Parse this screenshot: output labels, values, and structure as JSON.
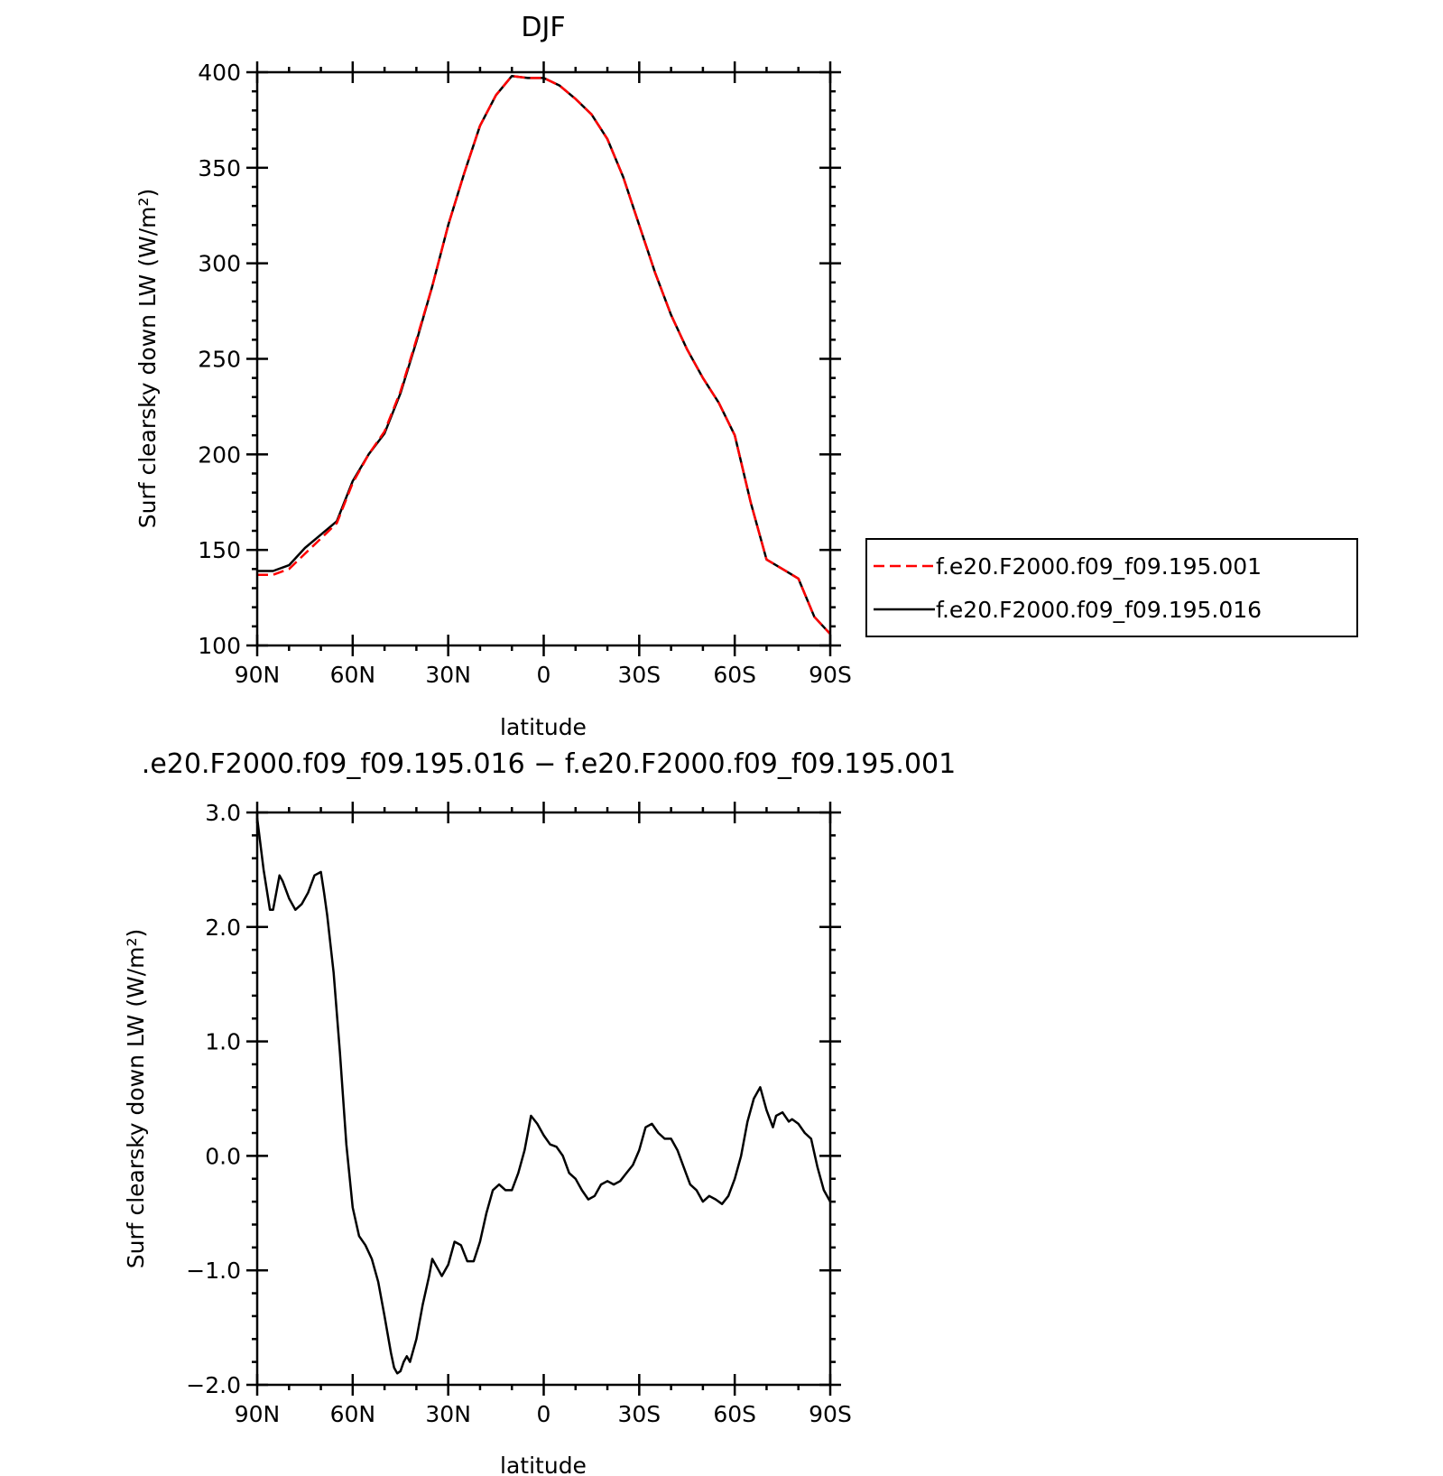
{
  "chart_data": [
    {
      "type": "line",
      "title": "DJF",
      "xlabel": "latitude",
      "ylabel": "Surf clearsky down LW (W/m²)",
      "xlim": [
        90,
        -90
      ],
      "ylim": [
        100,
        400
      ],
      "x_tick_values": [
        90,
        60,
        30,
        0,
        -30,
        -60,
        -90
      ],
      "x_tick_labels": [
        "90N",
        "60N",
        "30N",
        "0",
        "30S",
        "60S",
        "90S"
      ],
      "y_tick_values": [
        100,
        150,
        200,
        250,
        300,
        350,
        400
      ],
      "y_tick_labels": [
        "100",
        "150",
        "200",
        "250",
        "300",
        "350",
        "400"
      ],
      "legend_position": "right",
      "series": [
        {
          "name": "f.e20.F2000.f09_f09.195.001",
          "color": "#ff0000",
          "dash": "dashed",
          "x": [
            90,
            85,
            80,
            75,
            70,
            65,
            60,
            55,
            50,
            45,
            40,
            35,
            30,
            25,
            20,
            15,
            10,
            5,
            0,
            -5,
            -10,
            -15,
            -20,
            -25,
            -30,
            -35,
            -40,
            -45,
            -50,
            -55,
            -60,
            -65,
            -70,
            -75,
            -80,
            -85,
            -90
          ],
          "y": [
            137,
            137,
            140,
            148,
            156,
            164,
            185,
            200,
            212,
            233,
            260,
            288,
            320,
            347,
            372,
            388,
            398,
            397,
            397,
            393,
            386,
            378,
            365,
            345,
            320,
            295,
            273,
            255,
            240,
            227,
            210,
            175,
            145,
            140,
            135,
            115,
            106
          ]
        },
        {
          "name": "f.e20.F2000.f09_f09.195.016",
          "color": "#000000",
          "dash": "solid",
          "x": [
            90,
            85,
            80,
            75,
            70,
            65,
            60,
            55,
            50,
            45,
            40,
            35,
            30,
            25,
            20,
            15,
            10,
            5,
            0,
            -5,
            -10,
            -15,
            -20,
            -25,
            -30,
            -35,
            -40,
            -45,
            -50,
            -55,
            -60,
            -65,
            -70,
            -75,
            -80,
            -85,
            -90
          ],
          "y": [
            139,
            139,
            142,
            151,
            158,
            165,
            186,
            200,
            211,
            232,
            259,
            288,
            320,
            347,
            372,
            388,
            398,
            397,
            397,
            393,
            386,
            378,
            365,
            345,
            320,
            295,
            273,
            255,
            240,
            227,
            210,
            175,
            145,
            140,
            135,
            115,
            106
          ]
        }
      ]
    },
    {
      "type": "line",
      "title": ".e20.F2000.f09_f09.195.016 − f.e20.F2000.f09_f09.195.001",
      "xlabel": "latitude",
      "ylabel": "Surf clearsky down LW (W/m²)",
      "xlim": [
        90,
        -90
      ],
      "ylim": [
        -2.0,
        3.0
      ],
      "x_tick_values": [
        90,
        60,
        30,
        0,
        -30,
        -60,
        -90
      ],
      "x_tick_labels": [
        "90N",
        "60N",
        "30N",
        "0",
        "30S",
        "60S",
        "90S"
      ],
      "y_tick_values": [
        -2.0,
        -1.0,
        0.0,
        1.0,
        2.0,
        3.0
      ],
      "y_tick_labels": [
        "−2.0",
        "−1.0",
        "0.0",
        "1.0",
        "2.0",
        "3.0"
      ],
      "series": [
        {
          "color": "#000000",
          "dash": "solid",
          "x": [
            90,
            88,
            86,
            85,
            83,
            82,
            80,
            78,
            76,
            74,
            72,
            70,
            69,
            68,
            66,
            64,
            62,
            60,
            58,
            56,
            54,
            52,
            50,
            48,
            47,
            46,
            45,
            44,
            43,
            42,
            40,
            38,
            36,
            35,
            33,
            32,
            30,
            28,
            26,
            24,
            22,
            20,
            18,
            16,
            14,
            12,
            10,
            8,
            6,
            5,
            4,
            2,
            0,
            -2,
            -4,
            -6,
            -8,
            -10,
            -12,
            -14,
            -16,
            -18,
            -20,
            -22,
            -24,
            -26,
            -28,
            -30,
            -32,
            -34,
            -36,
            -38,
            -40,
            -42,
            -44,
            -46,
            -48,
            -50,
            -52,
            -54,
            -56,
            -58,
            -60,
            -62,
            -64,
            -66,
            -68,
            -70,
            -72,
            -73,
            -75,
            -77,
            -78,
            -80,
            -82,
            -84,
            -86,
            -88,
            -90
          ],
          "y": [
            2.95,
            2.5,
            2.15,
            2.15,
            2.45,
            2.4,
            2.25,
            2.15,
            2.2,
            2.3,
            2.45,
            2.48,
            2.3,
            2.1,
            1.6,
            0.9,
            0.1,
            -0.45,
            -0.7,
            -0.78,
            -0.9,
            -1.1,
            -1.4,
            -1.72,
            -1.85,
            -1.9,
            -1.88,
            -1.8,
            -1.75,
            -1.8,
            -1.6,
            -1.3,
            -1.05,
            -0.9,
            -1.0,
            -1.05,
            -0.95,
            -0.75,
            -0.78,
            -0.92,
            -0.92,
            -0.75,
            -0.5,
            -0.3,
            -0.25,
            -0.3,
            -0.3,
            -0.15,
            0.05,
            0.2,
            0.35,
            0.28,
            0.18,
            0.1,
            0.08,
            0.0,
            -0.15,
            -0.2,
            -0.3,
            -0.38,
            -0.35,
            -0.25,
            -0.22,
            -0.25,
            -0.22,
            -0.15,
            -0.08,
            0.05,
            0.25,
            0.28,
            0.2,
            0.15,
            0.15,
            0.05,
            -0.1,
            -0.25,
            -0.3,
            -0.4,
            -0.35,
            -0.38,
            -0.42,
            -0.35,
            -0.2,
            0.0,
            0.3,
            0.5,
            0.6,
            0.4,
            0.25,
            0.35,
            0.38,
            0.3,
            0.32,
            0.28,
            0.2,
            0.15,
            -0.1,
            -0.3,
            -0.4
          ]
        }
      ]
    }
  ]
}
